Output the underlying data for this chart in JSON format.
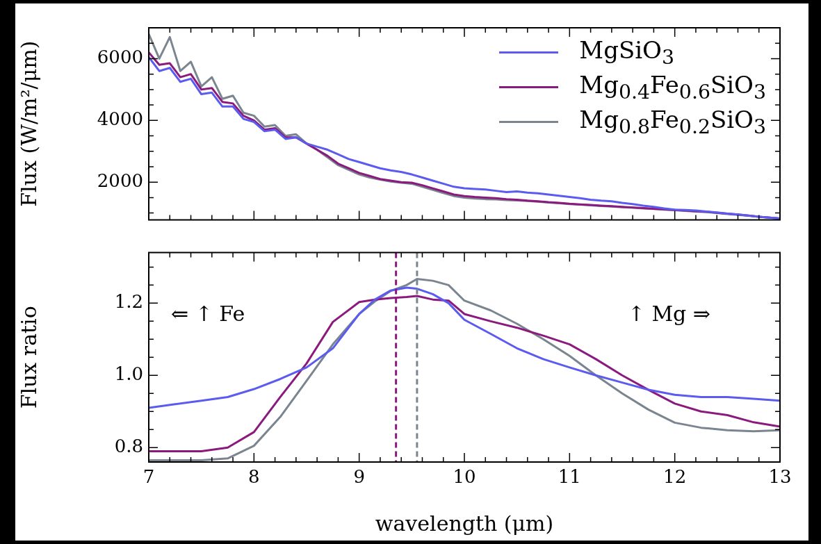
{
  "chart_data": [
    {
      "type": "line",
      "ylabel": "Flux (W/m²/μm)",
      "legend": "top right",
      "tick_labels": "y",
      "x": [
        7.0,
        7.1,
        7.2,
        7.3,
        7.4,
        7.5,
        7.6,
        7.7,
        7.8,
        7.9,
        8.0,
        8.1,
        8.2,
        8.3,
        8.4,
        8.5,
        8.6,
        8.7,
        8.8,
        8.9,
        9.0,
        9.1,
        9.2,
        9.3,
        9.4,
        9.5,
        9.6,
        9.7,
        9.8,
        9.9,
        10.0,
        10.1,
        10.2,
        10.3,
        10.4,
        10.5,
        10.6,
        10.7,
        10.8,
        10.9,
        11.0,
        11.1,
        11.2,
        11.3,
        11.4,
        11.5,
        11.6,
        11.7,
        11.8,
        11.9,
        12.0,
        12.1,
        12.2,
        12.3,
        12.4,
        12.5,
        12.6,
        12.7,
        12.8,
        12.9,
        13.0
      ],
      "series": [
        {
          "name": "MgSiO$_{3}$",
          "color": "#5b5bf0",
          "values": [
            6050,
            5600,
            5700,
            5250,
            5350,
            4850,
            4900,
            4450,
            4450,
            4050,
            3950,
            3650,
            3700,
            3400,
            3450,
            3250,
            3150,
            3050,
            2900,
            2750,
            2650,
            2550,
            2450,
            2380,
            2330,
            2250,
            2150,
            2050,
            1950,
            1850,
            1800,
            1780,
            1760,
            1720,
            1680,
            1700,
            1660,
            1640,
            1600,
            1560,
            1520,
            1480,
            1430,
            1400,
            1380,
            1330,
            1290,
            1240,
            1200,
            1150,
            1110,
            1100,
            1080,
            1050,
            1020,
            980,
            950,
            920,
            880,
            850,
            820
          ]
        },
        {
          "name": "Mg$_{0.4}$Fe$_{0.6}$SiO$_{3}$",
          "color": "#8b1a7e",
          "values": [
            6200,
            5800,
            5850,
            5400,
            5500,
            5000,
            5050,
            4600,
            4550,
            4150,
            4000,
            3700,
            3750,
            3450,
            3450,
            3250,
            3050,
            2850,
            2600,
            2450,
            2300,
            2200,
            2100,
            2050,
            2000,
            1980,
            1900,
            1800,
            1700,
            1600,
            1550,
            1520,
            1500,
            1480,
            1450,
            1430,
            1400,
            1380,
            1350,
            1330,
            1300,
            1280,
            1260,
            1240,
            1220,
            1200,
            1180,
            1160,
            1140,
            1120,
            1100,
            1080,
            1060,
            1040,
            1010,
            980,
            950,
            920,
            880,
            850,
            820
          ]
        },
        {
          "name": "Mg$_{0.8}$Fe$_{0.2}$SiO$_{3}$",
          "color": "#7a8590",
          "values": [
            6800,
            6000,
            6700,
            5600,
            5900,
            5100,
            5400,
            4700,
            4800,
            4250,
            4150,
            3800,
            3850,
            3500,
            3550,
            3250,
            3050,
            2800,
            2550,
            2400,
            2250,
            2150,
            2080,
            2020,
            1980,
            1950,
            1850,
            1750,
            1650,
            1550,
            1500,
            1470,
            1450,
            1440,
            1420,
            1410,
            1390,
            1370,
            1340,
            1320,
            1290,
            1270,
            1250,
            1230,
            1210,
            1190,
            1170,
            1150,
            1130,
            1110,
            1090,
            1070,
            1050,
            1030,
            1000,
            970,
            940,
            910,
            880,
            850,
            820
          ]
        }
      ],
      "xlim": [
        7,
        13
      ],
      "xticks": [
        7,
        {
          "value": 7.2,
          "label": null
        },
        {
          "value": 7.4,
          "label": null
        },
        {
          "value": 7.6,
          "label": null
        },
        {
          "value": 7.8,
          "label": null
        },
        8,
        {
          "value": 8.2,
          "label": null
        },
        {
          "value": 8.4,
          "label": null
        },
        {
          "value": 8.6,
          "label": null
        },
        {
          "value": 8.8,
          "label": null
        },
        9,
        {
          "value": 9.2,
          "label": null
        },
        {
          "value": 9.4,
          "label": null
        },
        {
          "value": 9.6,
          "label": null
        },
        {
          "value": 9.8,
          "label": null
        },
        10,
        {
          "value": 10.2,
          "label": null
        },
        {
          "value": 10.4,
          "label": null
        },
        {
          "value": 10.6,
          "label": null
        },
        {
          "value": 10.8,
          "label": null
        },
        11,
        {
          "value": 11.2,
          "label": null
        },
        {
          "value": 11.4,
          "label": null
        },
        {
          "value": 11.6,
          "label": null
        },
        {
          "value": 11.8,
          "label": null
        },
        12,
        {
          "value": 12.2,
          "label": null
        },
        {
          "value": 12.4,
          "label": null
        },
        {
          "value": 12.6,
          "label": null
        },
        {
          "value": 12.8,
          "label": null
        },
        13
      ],
      "ylim": [
        780,
        7000
      ],
      "yticks": [
        {
          "value": 1000,
          "label": null
        },
        {
          "value": 1500,
          "label": null
        },
        2000,
        {
          "value": 2500,
          "label": null
        },
        {
          "value": 3000,
          "label": null
        },
        {
          "value": 3500,
          "label": null
        },
        4000,
        {
          "value": 4500,
          "label": null
        },
        {
          "value": 5000,
          "label": null
        },
        {
          "value": 5500,
          "label": null
        },
        6000,
        {
          "value": 6500,
          "label": null
        }
      ]
    },
    {
      "type": "line",
      "xlabel": "wavelength (μm)",
      "ylabel": "Flux ratio",
      "annotations": [
        "⇐ ↑ Fe",
        "↑ Mg ⇒"
      ],
      "x": [
        7.0,
        7.25,
        7.5,
        7.75,
        8.0,
        8.25,
        8.5,
        8.75,
        9.0,
        9.15,
        9.3,
        9.45,
        9.55,
        9.7,
        9.85,
        10.0,
        10.25,
        10.5,
        10.75,
        11.0,
        11.25,
        11.5,
        11.75,
        12.0,
        12.25,
        12.5,
        12.75,
        13.0
      ],
      "series": [
        {
          "color": "#5b5bf0",
          "values": [
            0.91,
            0.92,
            0.93,
            0.94,
            0.962,
            0.99,
            1.022,
            1.075,
            1.17,
            1.21,
            1.235,
            1.243,
            1.24,
            1.225,
            1.2,
            1.154,
            1.115,
            1.075,
            1.045,
            1.022,
            1.0,
            0.98,
            0.96,
            0.946,
            0.94,
            0.94,
            0.935,
            0.93
          ]
        },
        {
          "color": "#8b1a7e",
          "values": [
            0.79,
            0.79,
            0.79,
            0.8,
            0.843,
            0.94,
            1.033,
            1.148,
            1.203,
            1.21,
            1.214,
            1.217,
            1.22,
            1.21,
            1.207,
            1.17,
            1.15,
            1.132,
            1.11,
            1.086,
            1.045,
            1.0,
            0.96,
            0.922,
            0.9,
            0.89,
            0.87,
            0.858
          ]
        },
        {
          "color": "#7a8590",
          "values": [
            0.765,
            0.765,
            0.765,
            0.77,
            0.805,
            0.885,
            0.985,
            1.086,
            1.17,
            1.205,
            1.234,
            1.25,
            1.267,
            1.262,
            1.25,
            1.207,
            1.18,
            1.143,
            1.1,
            1.054,
            1.0,
            0.95,
            0.905,
            0.869,
            0.855,
            0.848,
            0.845,
            0.848
          ]
        }
      ],
      "ref_lines": [
        {
          "axis": "x",
          "value": 9.35,
          "color": "#8b1a7e",
          "line_style": "dashed"
        },
        {
          "axis": "x",
          "value": 9.55,
          "color": "#7a8590",
          "line_style": "dashed"
        }
      ],
      "xlim": [
        7,
        13
      ],
      "xticks": [
        7,
        {
          "value": 7.2,
          "label": null
        },
        {
          "value": 7.4,
          "label": null
        },
        {
          "value": 7.6,
          "label": null
        },
        {
          "value": 7.8,
          "label": null
        },
        8,
        {
          "value": 8.2,
          "label": null
        },
        {
          "value": 8.4,
          "label": null
        },
        {
          "value": 8.6,
          "label": null
        },
        {
          "value": 8.8,
          "label": null
        },
        9,
        {
          "value": 9.2,
          "label": null
        },
        {
          "value": 9.4,
          "label": null
        },
        {
          "value": 9.6,
          "label": null
        },
        {
          "value": 9.8,
          "label": null
        },
        10,
        {
          "value": 10.2,
          "label": null
        },
        {
          "value": 10.4,
          "label": null
        },
        {
          "value": 10.6,
          "label": null
        },
        {
          "value": 10.8,
          "label": null
        },
        11,
        {
          "value": 11.2,
          "label": null
        },
        {
          "value": 11.4,
          "label": null
        },
        {
          "value": 11.6,
          "label": null
        },
        {
          "value": 11.8,
          "label": null
        },
        12,
        {
          "value": 12.2,
          "label": null
        },
        {
          "value": 12.4,
          "label": null
        },
        {
          "value": 12.6,
          "label": null
        },
        {
          "value": 12.8,
          "label": null
        },
        13
      ],
      "ylim": [
        0.76,
        1.34
      ],
      "yticks": [
        0.8,
        {
          "value": 0.85,
          "label": null
        },
        {
          "value": 0.9,
          "label": null
        },
        {
          "value": 0.95,
          "label": null
        },
        {
          "value": 1,
          "label": "1.0"
        },
        {
          "value": 1.05,
          "label": null
        },
        {
          "value": 1.1,
          "label": null
        },
        {
          "value": 1.15,
          "label": null
        },
        1.2,
        {
          "value": 1.25,
          "label": null
        },
        {
          "value": 1.3,
          "label": null
        }
      ]
    }
  ]
}
